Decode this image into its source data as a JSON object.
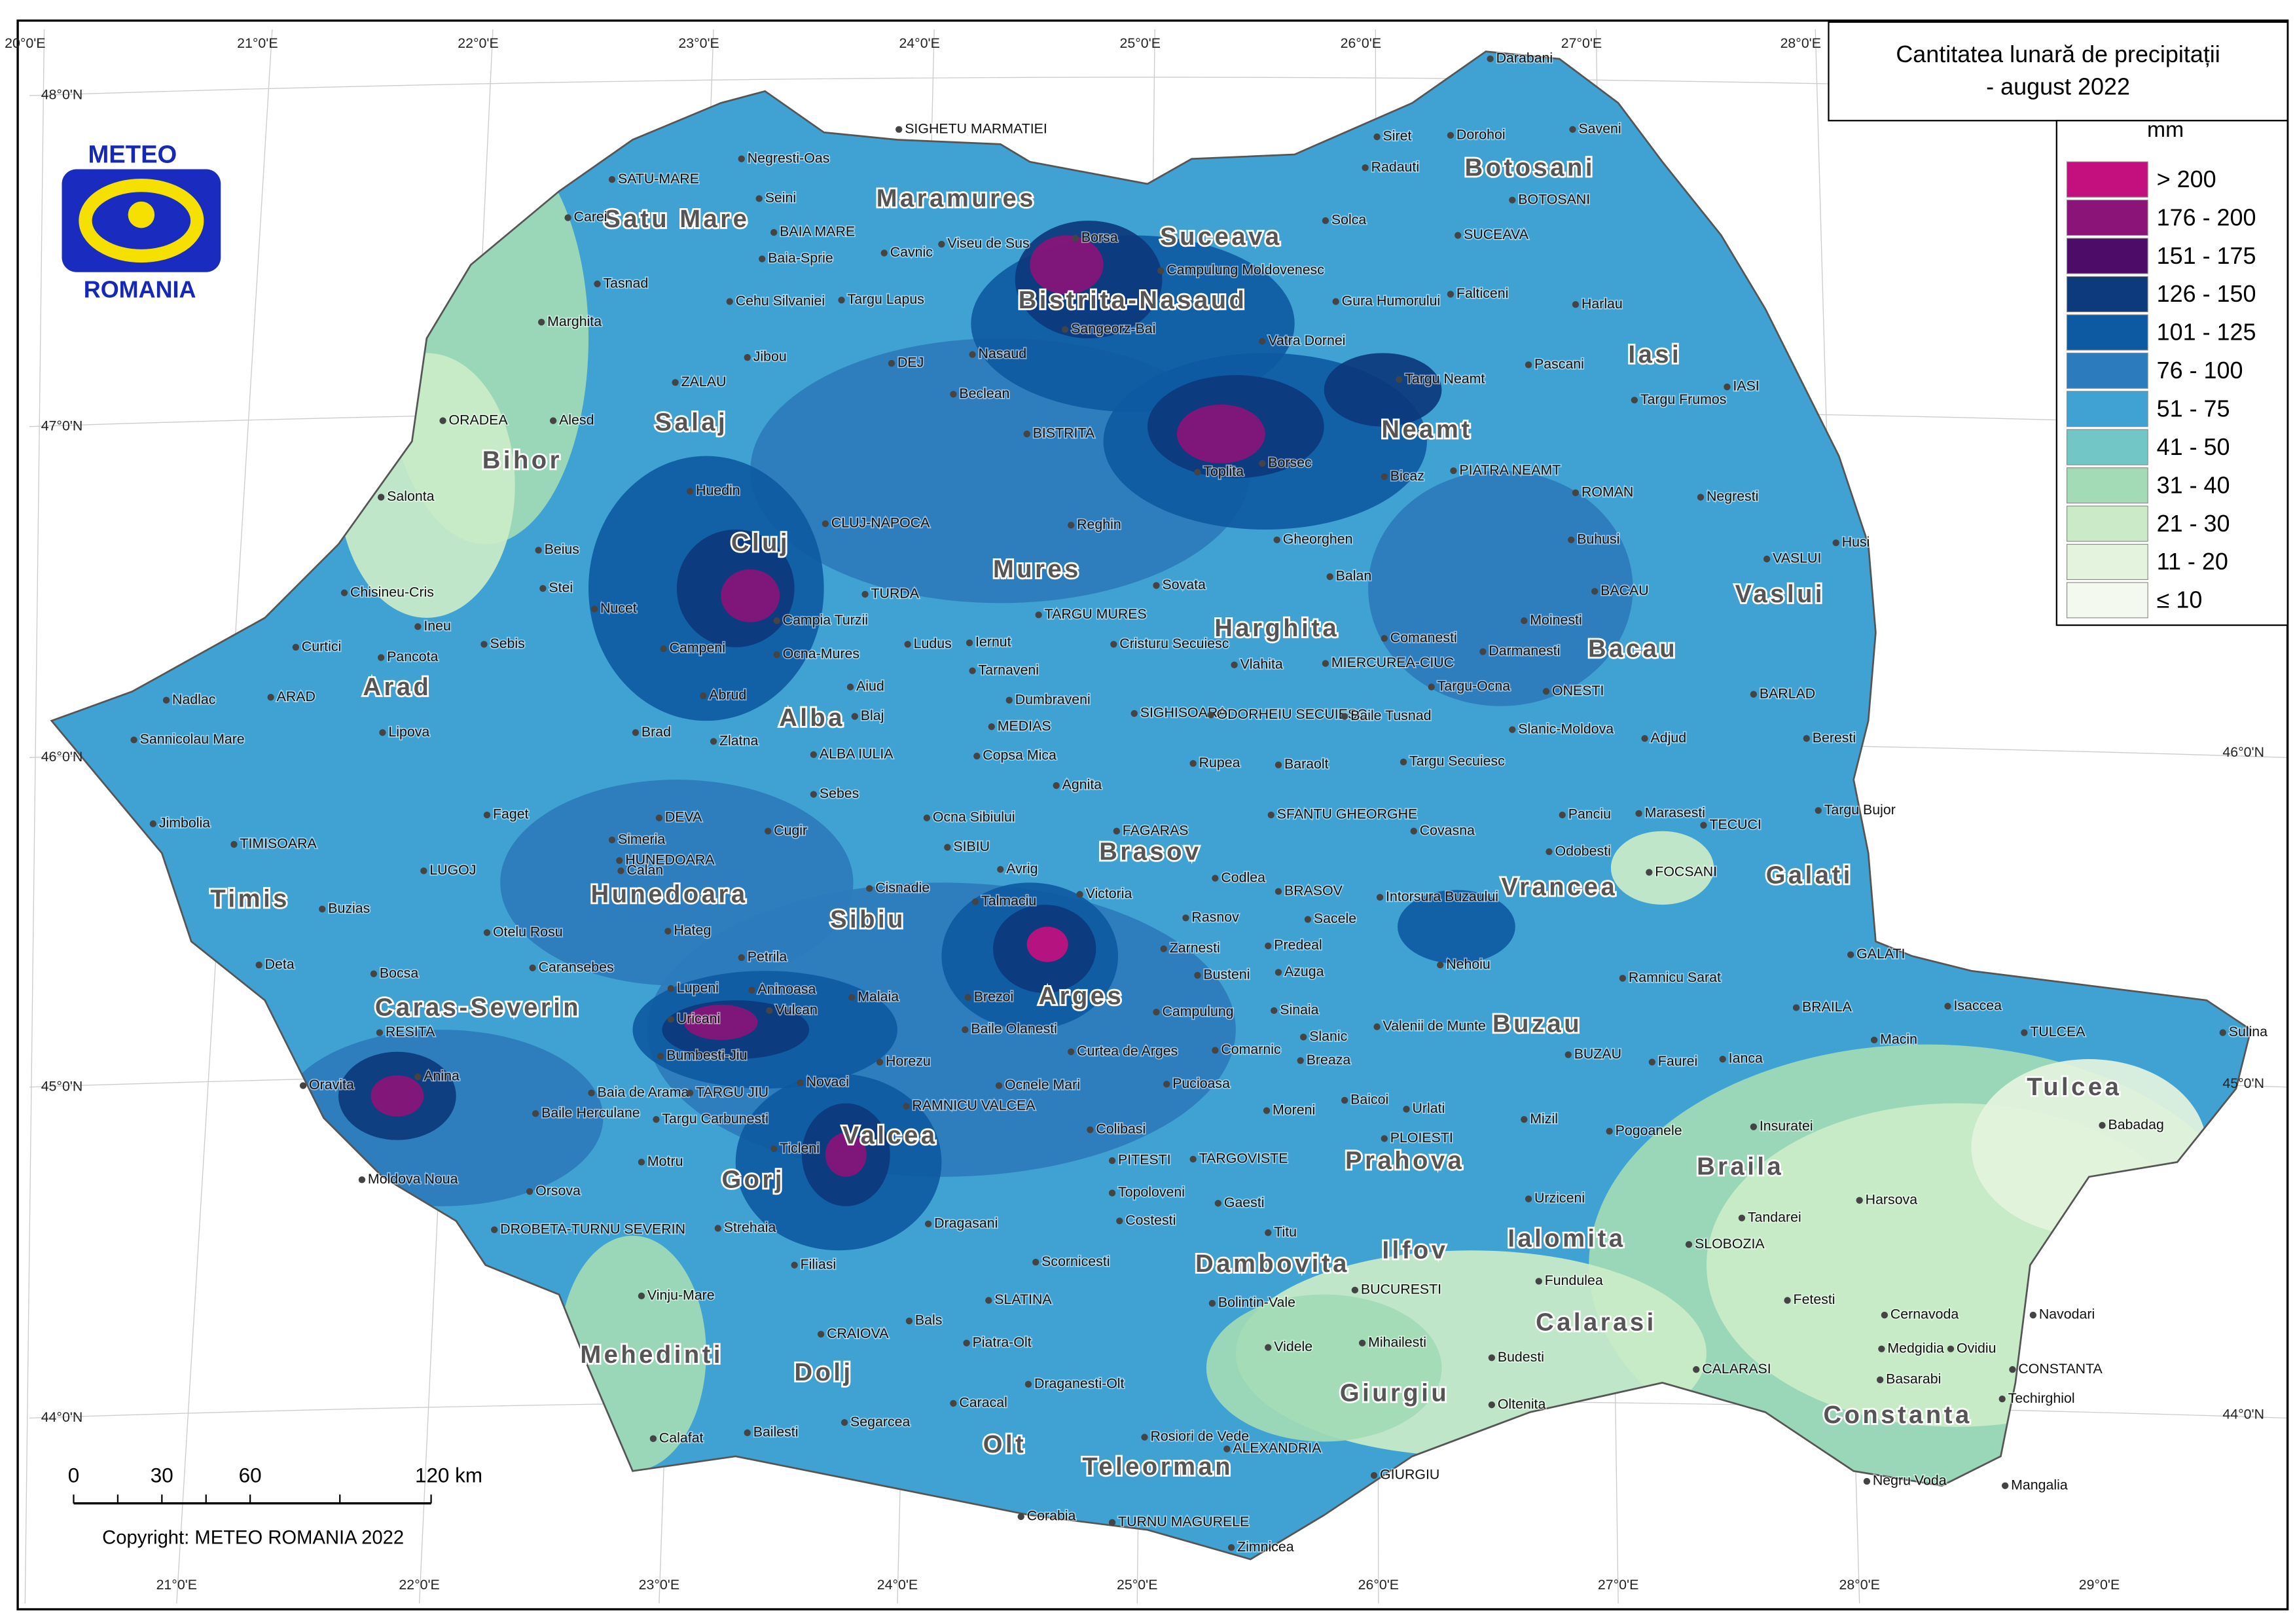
{
  "title": {
    "line1": "Cantitatea lunară de precipitații",
    "line2": "- august 2022"
  },
  "legend": {
    "title": "mm",
    "items": [
      {
        "label": "> 200",
        "color": "#c4107f"
      },
      {
        "label": "176 - 200",
        "color": "#8a1478"
      },
      {
        "label": "151 - 175",
        "color": "#4c0c68"
      },
      {
        "label": "126 - 150",
        "color": "#0c3a7c"
      },
      {
        "label": "101 - 125",
        "color": "#0e5aa2"
      },
      {
        "label": "76 - 100",
        "color": "#2c7bbc"
      },
      {
        "label": "51 - 75",
        "color": "#3fa2d3"
      },
      {
        "label": "41 - 50",
        "color": "#72c7c6"
      },
      {
        "label": "31 - 40",
        "color": "#a2dbb6"
      },
      {
        "label": "21 - 30",
        "color": "#cbebc8"
      },
      {
        "label": "11 - 20",
        "color": "#e4f3dd"
      },
      {
        "label": "≤ 10",
        "color": "#f4f9ef"
      }
    ]
  },
  "logo": {
    "top": "METEO",
    "bottom": "ROMANIA"
  },
  "scale": [
    "0",
    "30",
    "60",
    "120 km"
  ],
  "copyright": "Copyright: METEO ROMANIA 2022",
  "graticule": {
    "top": [
      "20°0'E",
      "21°0'E",
      "22°0'E",
      "23°0'E",
      "24°0'E",
      "25°0'E",
      "26°0'E",
      "27°0'E",
      "28°0'E"
    ],
    "bottom": [
      "21°0'E",
      "22°0'E",
      "23°0'E",
      "24°0'E",
      "25°0'E",
      "26°0'E",
      "27°0'E",
      "28°0'E",
      "29°0'E"
    ],
    "left": [
      "48°0'N",
      "47°0'N",
      "46°0'N",
      "45°0'N",
      "44°0'N"
    ],
    "right": [
      "46°0'N",
      "45°0'N",
      "44°0'N"
    ]
  },
  "counties": [
    "Satu Mare",
    "Maramures",
    "Suceava",
    "Botosani",
    "Bistrita-Nasaud",
    "Iasi",
    "Salaj",
    "Bihor",
    "Neamt",
    "Cluj",
    "Mures",
    "Harghita",
    "Vaslui",
    "Bacau",
    "Arad",
    "Alba",
    "Brasov",
    "Vrancea",
    "Galati",
    "Timis",
    "Hunedoara",
    "Sibiu",
    "Arges",
    "Buzau",
    "Caras-Severin",
    "Tulcea",
    "Valcea",
    "Gorj",
    "Prahova",
    "Braila",
    "Ilfov",
    "Ialomita",
    "Dambovita",
    "Calarasi",
    "Mehedinti",
    "Dolj",
    "Giurgiu",
    "Constanta",
    "Olt",
    "Teleorman"
  ],
  "cities": [
    "SIGHETU MARMATIEI",
    "SATU-MARE",
    "Carei",
    "Negresti-Oas",
    "Seini",
    "BAIA MARE",
    "Cavnic",
    "Viseu de Sus",
    "Borsa",
    "Baia-Sprie",
    "Tasnad",
    "Marghita",
    "Cehu Silvaniei",
    "Targu Lapus",
    "ZALAU",
    "Jibou",
    "DEJ",
    "Beclean",
    "Nasaud",
    "Sangeorz-Bai",
    "Vatra Dornei",
    "Campulung Moldovenesc",
    "Gura Humorului",
    "Solca",
    "Radauti",
    "Siret",
    "Darabani",
    "Dorohoi",
    "Saveni",
    "SUCEAVA",
    "BOTOSANI",
    "Falticeni",
    "Harlau",
    "Pascani",
    "Targu Frumos",
    "IASI",
    "Targu Neamt",
    "BISTRITA",
    "ORADEA",
    "Alesd",
    "Huedin",
    "CLUJ-NAPOCA",
    "Reghin",
    "Toplita",
    "Borsec",
    "Bicaz",
    "PIATRA NEAMT",
    "ROMAN",
    "Negresti",
    "Salonta",
    "Beius",
    "Stei",
    "TURDA",
    "Campia Turzii",
    "Sovata",
    "TARGU MURES",
    "Gheorghen",
    "Balan",
    "Buhusi",
    "VASLUI",
    "Husi",
    "BACAU",
    "Moinesti",
    "Comanesti",
    "Darmanesti",
    "MIERCUREA-CIUC",
    "Targu-Ocna",
    "ONESTI",
    "Chisineu-Cris",
    "Ineu",
    "Curtici",
    "Pancota",
    "Sebis",
    "Nucet",
    "Campeni",
    "Abrud",
    "Ocna-Mures",
    "Aiud",
    "Ludus",
    "Iernut",
    "Cristuru Secuiesc",
    "Vlahita",
    "Tarnaveni",
    "Dumbraveni",
    "MEDIAS",
    "SIGHISOARA",
    "ODORHEIU SECUIESC",
    "Nadlac",
    "ARAD",
    "BARLAD",
    "Sannicolau Mare",
    "Lipova",
    "Brad",
    "Zlatna",
    "Blaj",
    "ALBA IULIA",
    "Copsa Mica",
    "Baile Tusnad",
    "Slanic-Moldova",
    "Adjud",
    "Beresti",
    "Rupea",
    "Baraolt",
    "Targu Secuiesc",
    "Agnita",
    "Sebes",
    "Faget",
    "DEVA",
    "Simeria",
    "HUNEDOARA",
    "Cugir",
    "Ocna Sibiului",
    "SIBIU",
    "FAGARAS",
    "SFANTU GHEORGHE",
    "Covasna",
    "Panciu",
    "Marasesti",
    "TECUCI",
    "Targu Bujor",
    "Jimbolia",
    "TIMISOARA",
    "LUGOJ",
    "Calan",
    "Avrig",
    "Codlea",
    "Odobesti",
    "FOCSANI",
    "Cisnadie",
    "Talmaciu",
    "Victoria",
    "BRASOV",
    "Intorsura Buzaului",
    "Buzias",
    "Otelu Rosu",
    "Hateg",
    "Zarnesti",
    "Rasnov",
    "Sacele",
    "Predeal",
    "Deta",
    "Bocsa",
    "Caransebes",
    "Petrila",
    "Lupeni",
    "Aninoasa",
    "Busteni",
    "Azuga",
    "Nehoiu",
    "GALATI",
    "Ramnicu Sarat",
    "Vulcan",
    "Uricani",
    "Malaia",
    "Brezoi",
    "Baile Olanesti",
    "Campulung",
    "Sinaia",
    "Valenii de Munte",
    "BRAILA",
    "Isaccea",
    "Macin",
    "TULCEA",
    "Sulina",
    "RESITA",
    "Anina",
    "Oravita",
    "Bumbesti-Jiu",
    "Horezu",
    "Curtea de Arges",
    "Slanic",
    "Breaza",
    "BUZAU",
    "Faurei",
    "Ianca",
    "Baia de Arama",
    "TARGU JIU",
    "Novaci",
    "RAMNICU VALCEA",
    "Ocnele Mari",
    "Pucioasa",
    "Comarnic",
    "Baicoi",
    "Urlati",
    "Mizil",
    "Baile Herculane",
    "Targu Carbunesti",
    "Colibasi",
    "Moreni",
    "PLOIESTI",
    "Pogoanele",
    "Insuratei",
    "Babadag",
    "Moldova Noua",
    "Orsova",
    "Motru",
    "Ticleni",
    "PITESTI",
    "TARGOVISTE",
    "Topoloveni",
    "Costesti",
    "Gaesti",
    "Urziceni",
    "Harsova",
    "Tandarei",
    "DROBETA-TURNU SEVERIN",
    "Strehaia",
    "Dragasani",
    "Titu",
    "SLOBOZIA",
    "Filiasi",
    "Scornicesti",
    "Fundulea",
    "Vinju-Mare",
    "SLATINA",
    "Bolintin-Vale",
    "BUCURESTI",
    "Fetesti",
    "Cernavoda",
    "Navodari",
    "CRAIOVA",
    "Bals",
    "Piatra-Olt",
    "Videle",
    "Mihailesti",
    "Medgidia",
    "Ovidiu",
    "Draganesti-Olt",
    "Budesti",
    "CALARASI",
    "CONSTANTA",
    "Calafat",
    "Bailesti",
    "Segarcea",
    "Caracal",
    "Rosiori de Vede",
    "Oltenita",
    "Basarabi",
    "Techirghiol",
    "ALEXANDRIA",
    "GIURGIU",
    "Negru Voda",
    "Mangalia",
    "Corabia",
    "TURNU MAGURELE",
    "Zimnicea"
  ]
}
